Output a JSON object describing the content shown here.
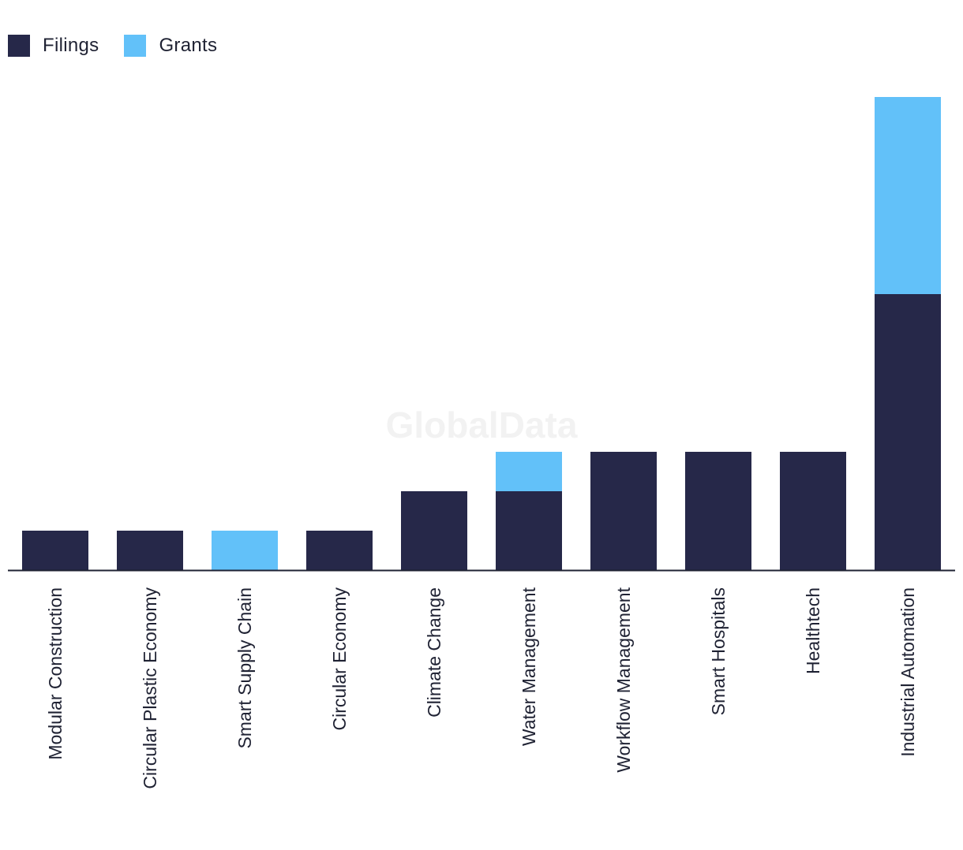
{
  "watermark": "GlobalData",
  "colors": {
    "filings": "#262849",
    "grants": "#62c1f9",
    "axis": "#1f2233",
    "tick_label": "#1f2233"
  },
  "legend": {
    "items": [
      {
        "label": "Filings",
        "color": "#262849"
      },
      {
        "label": "Grants",
        "color": "#62c1f9"
      }
    ],
    "placement": "top-left"
  },
  "chart_data": {
    "type": "bar",
    "stacked": true,
    "categories": [
      "Modular Construction",
      "Circular Plastic Economy",
      "Smart Supply Chain",
      "Circular Economy",
      "Climate Change",
      "Water Management",
      "Workflow Management",
      "Smart Hospitals",
      "Healthtech",
      "Industrial Automation"
    ],
    "series": [
      {
        "name": "Filings",
        "color": "#262849",
        "values": [
          1,
          1,
          0,
          1,
          2,
          2,
          3,
          3,
          3,
          7
        ]
      },
      {
        "name": "Grants",
        "color": "#62c1f9",
        "values": [
          0,
          0,
          1,
          0,
          0,
          1,
          0,
          0,
          0,
          5
        ]
      }
    ],
    "ylim": [
      0,
      12
    ],
    "grid": false,
    "y_axis_visible": false,
    "tick_label_rotation": "vertical"
  }
}
